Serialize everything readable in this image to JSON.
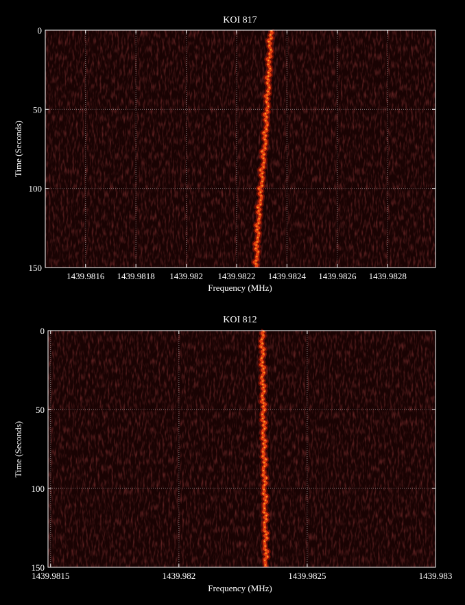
{
  "colors": {
    "background": "#000000",
    "plot_background": "#190303",
    "noise": "#3b0808",
    "trace_outer": "#a11406",
    "trace_core": "#f0410f",
    "trace_hot": "#ffd35a",
    "grid": "#9a9a9a",
    "text": "#ffffff"
  },
  "chart_data": [
    {
      "type": "heatmap",
      "title": "KOI 817",
      "xlabel": "Frequency (MHz)",
      "ylabel": "Time (Seconds)",
      "xlim": [
        1439.98144,
        1439.98299
      ],
      "ylim": [
        0,
        150
      ],
      "y_inverted": true,
      "grid": true,
      "xticks": [
        1439.9816,
        1439.9818,
        1439.982,
        1439.9822,
        1439.9824,
        1439.9826,
        1439.9828
      ],
      "xtick_labels": [
        "1439.9816",
        "1439.9818",
        "1439.982",
        "1439.9822",
        "1439.9824",
        "1439.9826",
        "1439.9828"
      ],
      "yticks": [
        0,
        50,
        100,
        150
      ],
      "ytick_labels": [
        "0",
        "50",
        "100",
        "150"
      ],
      "signal": {
        "time": [
          0,
          10,
          20,
          30,
          40,
          50,
          60,
          70,
          80,
          90,
          100,
          110,
          120,
          130,
          140,
          150
        ],
        "frequency": [
          1439.982335,
          1439.982333,
          1439.98233,
          1439.982327,
          1439.982324,
          1439.98232,
          1439.982317,
          1439.982313,
          1439.982307,
          1439.982302,
          1439.982297,
          1439.982292,
          1439.982287,
          1439.982283,
          1439.98228,
          1439.982278
        ]
      }
    },
    {
      "type": "heatmap",
      "title": "KOI 812",
      "xlabel": "Frequency (MHz)",
      "ylabel": "Time (Seconds)",
      "xlim": [
        1439.98149,
        1439.983
      ],
      "ylim": [
        0,
        150
      ],
      "y_inverted": true,
      "grid": true,
      "xticks": [
        1439.9815,
        1439.982,
        1439.9825,
        1439.983
      ],
      "xtick_labels": [
        "1439.9815",
        "1439.982",
        "1439.9825",
        "1439.983"
      ],
      "yticks": [
        0,
        50,
        100,
        150
      ],
      "ytick_labels": [
        "0",
        "50",
        "100",
        "150"
      ],
      "signal": {
        "time": [
          0,
          10,
          20,
          30,
          40,
          50,
          60,
          70,
          80,
          90,
          100,
          110,
          120,
          130,
          140,
          150
        ],
        "frequency": [
          1439.982325,
          1439.982325,
          1439.982326,
          1439.982327,
          1439.982328,
          1439.982329,
          1439.98233,
          1439.982331,
          1439.982332,
          1439.982333,
          1439.982334,
          1439.982335,
          1439.982336,
          1439.982337,
          1439.982338,
          1439.982339
        ]
      }
    }
  ]
}
